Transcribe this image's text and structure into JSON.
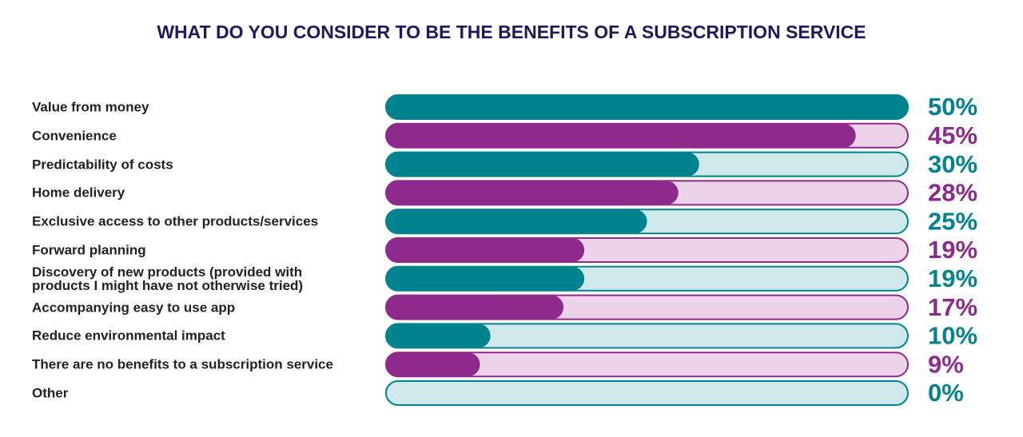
{
  "chart_data": {
    "type": "bar",
    "orientation": "horizontal",
    "title": "WHAT DO YOU CONSIDER TO BE THE BENEFITS OF A SUBSCRIPTION SERVICE",
    "categories": [
      "Value from money",
      "Convenience",
      "Predictability of costs",
      "Home delivery",
      "Exclusive access to other products/services",
      "Forward planning",
      "Discovery of new products (provided with products I might have not otherwise tried)",
      "Accompanying easy to use app",
      "Reduce environmental impact",
      "There are no benefits to a subscription service",
      "Other"
    ],
    "values": [
      50,
      45,
      30,
      28,
      25,
      19,
      19,
      17,
      10,
      9,
      0
    ],
    "value_labels": [
      "50%",
      "45%",
      "30%",
      "28%",
      "25%",
      "19%",
      "19%",
      "17%",
      "10%",
      "9%",
      "0%"
    ],
    "colors": [
      "#00838f",
      "#8e2a8b",
      "#00838f",
      "#8e2a8b",
      "#00838f",
      "#8e2a8b",
      "#00838f",
      "#8e2a8b",
      "#00838f",
      "#8e2a8b",
      "#00838f"
    ],
    "track_colors": [
      "#cfe8ec",
      "#ecd3ea",
      "#cfe8ec",
      "#ecd3ea",
      "#cfe8ec",
      "#ecd3ea",
      "#cfe8ec",
      "#ecd3ea",
      "#cfe8ec",
      "#ecd3ea",
      "#cfe8ec"
    ],
    "xlim": [
      0,
      50
    ]
  }
}
